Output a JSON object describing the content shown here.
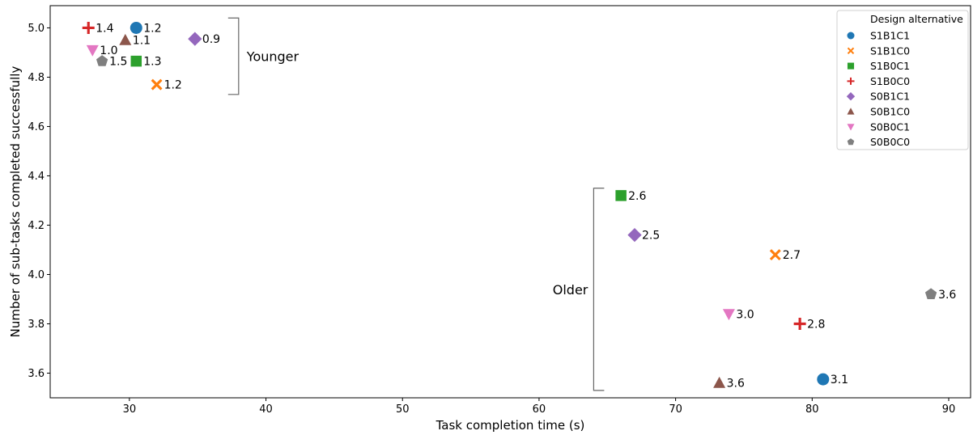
{
  "chart_data": {
    "type": "scatter",
    "xlabel": "Task completion time (s)",
    "ylabel": "Number of sub-tasks completed successfully",
    "xlim": [
      24.2,
      91.6
    ],
    "ylim": [
      3.5,
      5.09
    ],
    "x_ticks": [
      30,
      40,
      50,
      60,
      70,
      80,
      90
    ],
    "y_ticks": [
      3.6,
      3.8,
      4.0,
      4.2,
      4.4,
      4.6,
      4.8,
      5.0
    ],
    "grid": false,
    "legend": {
      "title": "Design alternative",
      "position": "top-right"
    },
    "series": [
      {
        "name": "S1B1C1",
        "marker": "circle",
        "color": "#1f77b4",
        "points": [
          {
            "x": 30.5,
            "y": 5.0,
            "label": "1.2"
          },
          {
            "x": 80.8,
            "y": 3.575,
            "label": "3.1"
          }
        ]
      },
      {
        "name": "S1B1C0",
        "marker": "x",
        "color": "#ff7f0e",
        "points": [
          {
            "x": 32.0,
            "y": 4.77,
            "label": "1.2"
          },
          {
            "x": 77.3,
            "y": 4.08,
            "label": "2.7"
          }
        ]
      },
      {
        "name": "S1B0C1",
        "marker": "square",
        "color": "#2ca02c",
        "points": [
          {
            "x": 30.5,
            "y": 4.865,
            "label": "1.3"
          },
          {
            "x": 66.0,
            "y": 4.32,
            "label": "2.6"
          }
        ]
      },
      {
        "name": "S1B0C0",
        "marker": "plus",
        "color": "#d62728",
        "points": [
          {
            "x": 27.0,
            "y": 5.0,
            "label": "1.4"
          },
          {
            "x": 79.1,
            "y": 3.8,
            "label": "2.8"
          }
        ]
      },
      {
        "name": "S0B1C1",
        "marker": "diamond",
        "color": "#9467bd",
        "points": [
          {
            "x": 34.8,
            "y": 4.955,
            "label": "0.9"
          },
          {
            "x": 67.0,
            "y": 4.16,
            "label": "2.5"
          }
        ]
      },
      {
        "name": "S0B1C0",
        "marker": "triangle-up",
        "color": "#8c564b",
        "points": [
          {
            "x": 29.7,
            "y": 4.95,
            "label": "1.1"
          },
          {
            "x": 73.2,
            "y": 3.56,
            "label": "3.6"
          }
        ]
      },
      {
        "name": "S0B0C1",
        "marker": "triangle-down",
        "color": "#e377c2",
        "points": [
          {
            "x": 27.3,
            "y": 4.91,
            "label": "1.0"
          },
          {
            "x": 73.9,
            "y": 3.84,
            "label": "3.0"
          }
        ]
      },
      {
        "name": "S0B0C0",
        "marker": "pentagon",
        "color": "#7f7f7f",
        "points": [
          {
            "x": 28.0,
            "y": 4.865,
            "label": "1.5"
          },
          {
            "x": 88.7,
            "y": 3.92,
            "label": "3.6"
          }
        ]
      }
    ],
    "annotations": [
      {
        "text": "Younger",
        "bracket_x": 38.0,
        "y_range": [
          4.73,
          5.04
        ],
        "side": "right"
      },
      {
        "text": "Older",
        "bracket_x": 64.0,
        "y_range": [
          3.53,
          4.35
        ],
        "side": "left"
      }
    ]
  }
}
